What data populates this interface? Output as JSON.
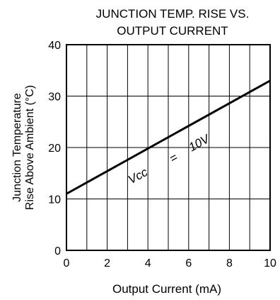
{
  "chart_data": {
    "type": "line",
    "title_lines": [
      "JUNCTION TEMP. RISE VS.",
      "OUTPUT CURRENT"
    ],
    "xlabel": "Output Current (mA)",
    "ylabel_lines": [
      "Junction Temperature",
      "Rise Above Ambient (°C)"
    ],
    "xlim": [
      0,
      10
    ],
    "ylim": [
      0,
      40
    ],
    "x_ticks": [
      "0",
      "2",
      "4",
      "6",
      "8",
      "10"
    ],
    "y_ticks": [
      "0",
      "10",
      "20",
      "30",
      "40"
    ],
    "grid": true,
    "series": [
      {
        "x": [
          0,
          10
        ],
        "y": [
          11,
          33
        ]
      }
    ],
    "annotations": [
      {
        "text": "Vcc",
        "x": 3.6,
        "y": 13.8
      },
      {
        "text": "=",
        "x": 5.35,
        "y": 17.3
      },
      {
        "text": "10V",
        "x": 6.6,
        "y": 20.2
      }
    ]
  }
}
